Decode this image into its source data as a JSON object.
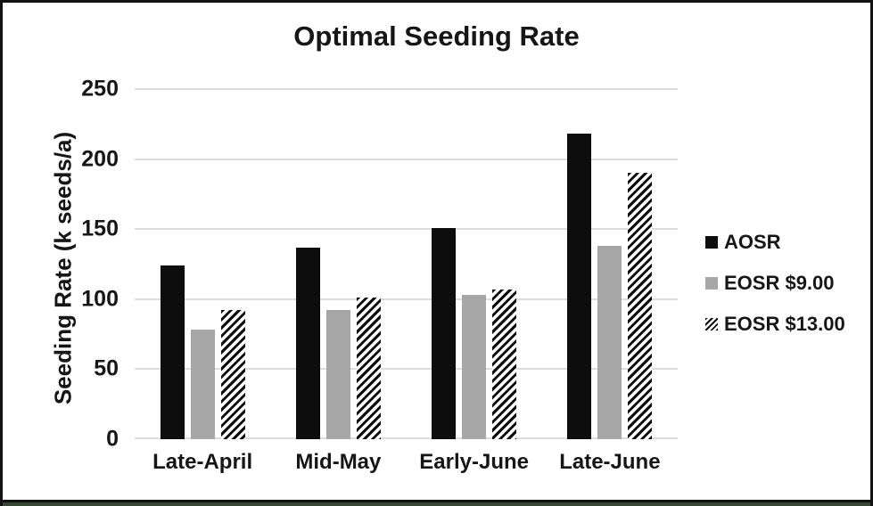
{
  "frame": {
    "border_color": "#121212",
    "bottom_strip_color": "#364733",
    "background": "#ffffff"
  },
  "chart_data": {
    "type": "bar",
    "title": "Optimal Seeding Rate",
    "xlabel": "",
    "ylabel": "Seeding Rate (k seeds/a)",
    "categories": [
      "Late-April",
      "Mid-May",
      "Early-June",
      "Late-June"
    ],
    "series": [
      {
        "name": "AOSR",
        "style": "solid-black",
        "color": "#0d0d0d",
        "values": [
          124,
          137,
          151,
          218
        ]
      },
      {
        "name": "EOSR $9.00",
        "style": "solid-gray",
        "color": "#a6a6a6",
        "values": [
          78,
          92,
          103,
          138
        ]
      },
      {
        "name": "EOSR $13.00",
        "style": "hatch-diagonal",
        "color": "#000000",
        "values": [
          92,
          101,
          107,
          190
        ]
      }
    ],
    "ylim": [
      0,
      250
    ],
    "yticks": [
      0,
      50,
      100,
      150,
      200,
      250
    ],
    "grid": true,
    "gridline_color": "#dcdcdc",
    "legend_position": "right"
  }
}
